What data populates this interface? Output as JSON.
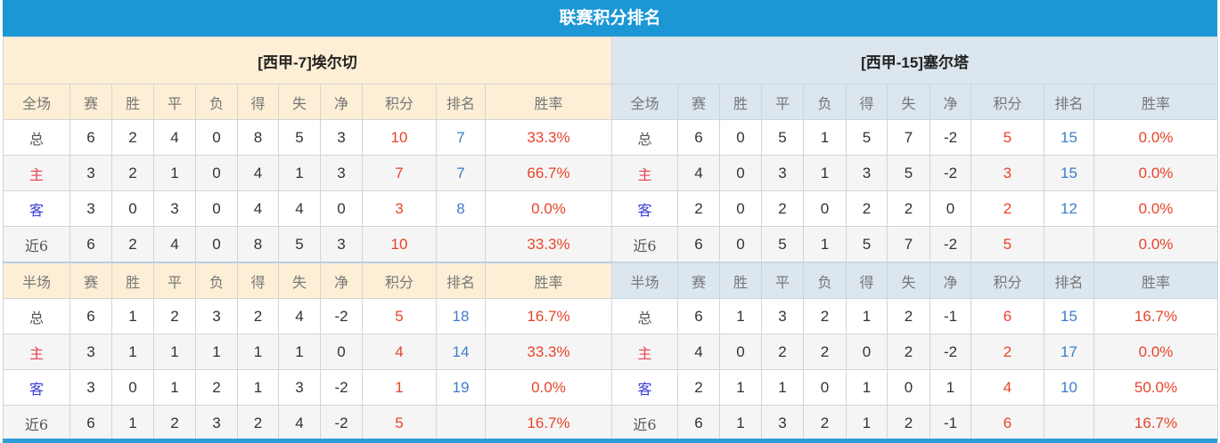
{
  "title": "联赛积分排名",
  "colors": {
    "title_bar": "#1b97d6",
    "points": "#e8442a",
    "rank": "#3c7ec9",
    "home": "#e8424b",
    "away": "#3b3bd6"
  },
  "headers": [
    "赛",
    "胜",
    "平",
    "负",
    "得",
    "失",
    "净",
    "积分",
    "排名",
    "胜率"
  ],
  "teams": [
    {
      "name": "[西甲-7]埃尔切",
      "full": {
        "label": "全场",
        "rows": [
          [
            "总",
            "6",
            "2",
            "4",
            "0",
            "8",
            "5",
            "3",
            "10",
            "7",
            "33.3%"
          ],
          [
            "主",
            "3",
            "2",
            "1",
            "0",
            "4",
            "1",
            "3",
            "7",
            "7",
            "66.7%"
          ],
          [
            "客",
            "3",
            "0",
            "3",
            "0",
            "4",
            "4",
            "0",
            "3",
            "8",
            "0.0%"
          ],
          [
            "近6",
            "6",
            "2",
            "4",
            "0",
            "8",
            "5",
            "3",
            "10",
            "",
            "33.3%"
          ]
        ]
      },
      "half": {
        "label": "半场",
        "rows": [
          [
            "总",
            "6",
            "1",
            "2",
            "3",
            "2",
            "4",
            "-2",
            "5",
            "18",
            "16.7%"
          ],
          [
            "主",
            "3",
            "1",
            "1",
            "1",
            "1",
            "1",
            "0",
            "4",
            "14",
            "33.3%"
          ],
          [
            "客",
            "3",
            "0",
            "1",
            "2",
            "1",
            "3",
            "-2",
            "1",
            "19",
            "0.0%"
          ],
          [
            "近6",
            "6",
            "1",
            "2",
            "3",
            "2",
            "4",
            "-2",
            "5",
            "",
            "16.7%"
          ]
        ]
      }
    },
    {
      "name": "[西甲-15]塞尔塔",
      "full": {
        "label": "全场",
        "rows": [
          [
            "总",
            "6",
            "0",
            "5",
            "1",
            "5",
            "7",
            "-2",
            "5",
            "15",
            "0.0%"
          ],
          [
            "主",
            "4",
            "0",
            "3",
            "1",
            "3",
            "5",
            "-2",
            "3",
            "15",
            "0.0%"
          ],
          [
            "客",
            "2",
            "0",
            "2",
            "0",
            "2",
            "2",
            "0",
            "2",
            "12",
            "0.0%"
          ],
          [
            "近6",
            "6",
            "0",
            "5",
            "1",
            "5",
            "7",
            "-2",
            "5",
            "",
            "0.0%"
          ]
        ]
      },
      "half": {
        "label": "半场",
        "rows": [
          [
            "总",
            "6",
            "1",
            "3",
            "2",
            "1",
            "2",
            "-1",
            "6",
            "15",
            "16.7%"
          ],
          [
            "主",
            "4",
            "0",
            "2",
            "2",
            "0",
            "2",
            "-2",
            "2",
            "17",
            "0.0%"
          ],
          [
            "客",
            "2",
            "1",
            "1",
            "0",
            "1",
            "0",
            "1",
            "4",
            "10",
            "50.0%"
          ],
          [
            "近6",
            "6",
            "1",
            "3",
            "2",
            "1",
            "2",
            "-1",
            "6",
            "",
            "16.7%"
          ]
        ]
      }
    }
  ]
}
